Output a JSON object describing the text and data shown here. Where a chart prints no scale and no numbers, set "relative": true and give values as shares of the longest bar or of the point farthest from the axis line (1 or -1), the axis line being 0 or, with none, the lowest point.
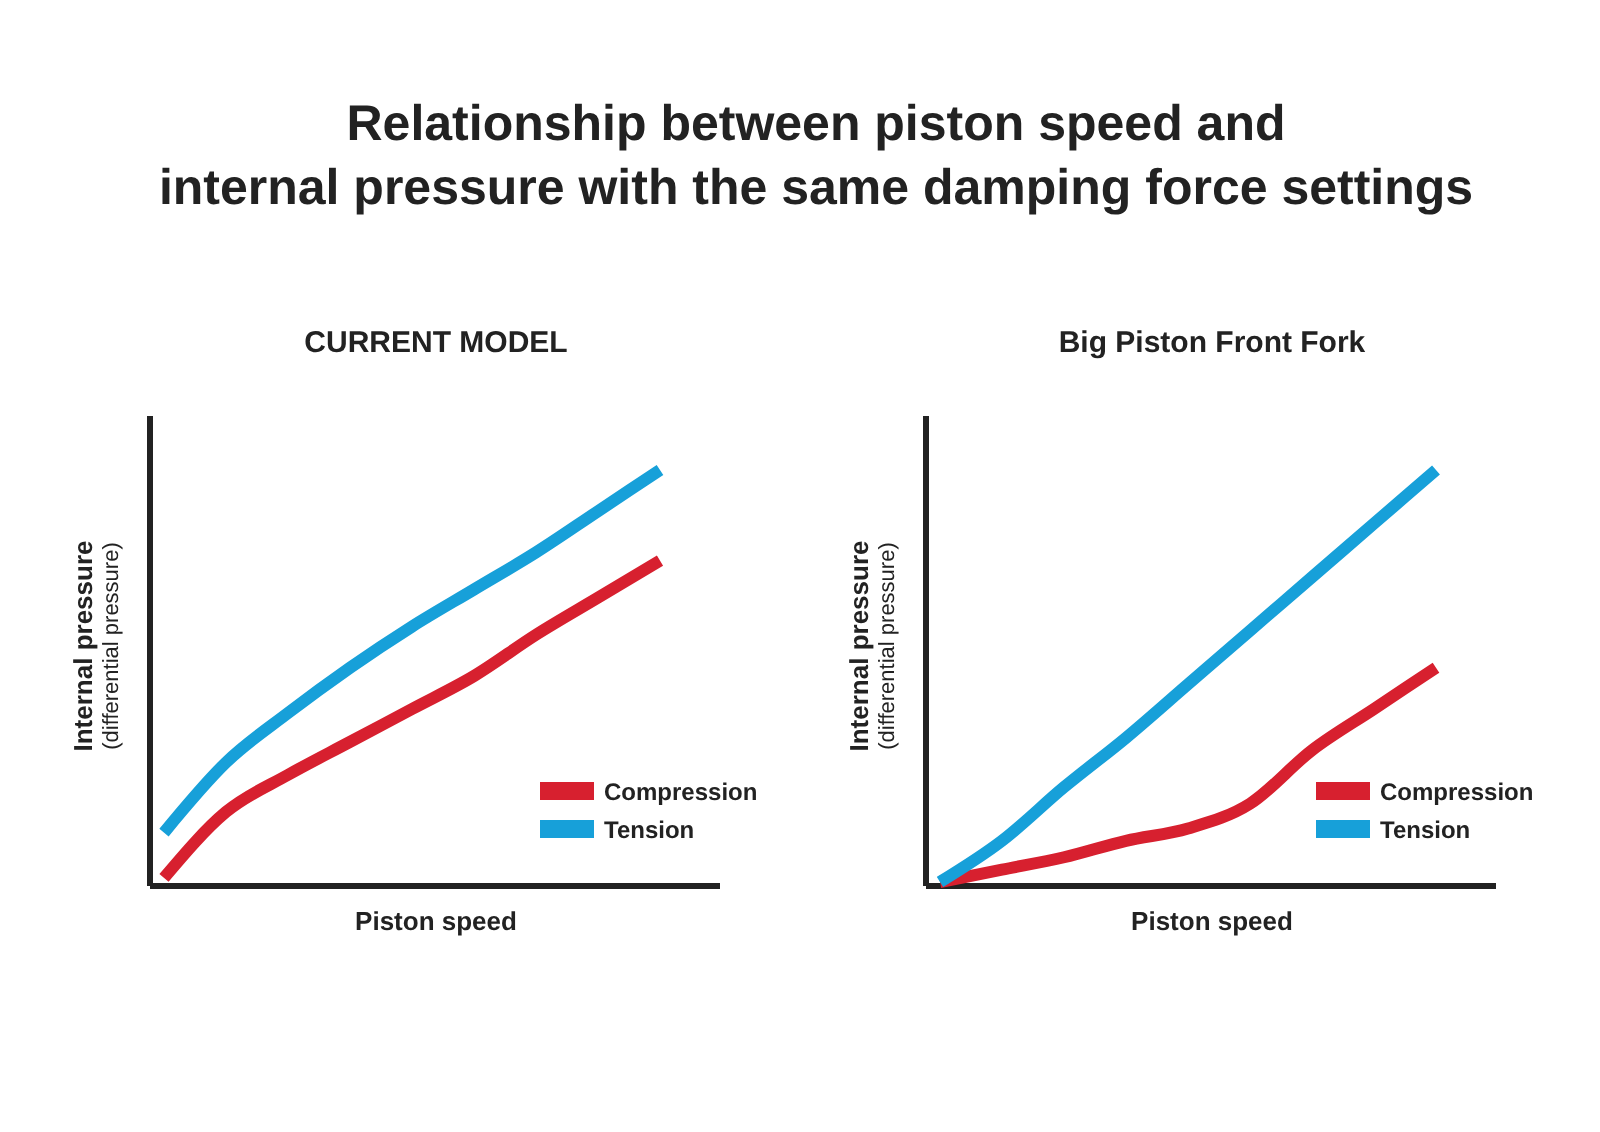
{
  "chart_data": [
    {
      "type": "other",
      "title": "Relationship between piston speed and\ninternal pressure with the same damping force settings"
    },
    {
      "type": "line",
      "title": "CURRENT MODEL",
      "xlabel": "Piston speed",
      "ylabel": "Internal pressure\n(differential pressure)",
      "relative": true,
      "legend": "right",
      "categories": [
        null,
        null,
        null,
        null,
        null,
        null,
        null,
        null,
        null
      ],
      "series": [
        {
          "name": "Compression",
          "color": "#d7202f",
          "values": [
            0.01,
            0.17,
            0.26,
            0.34,
            0.42,
            0.5,
            0.6,
            0.69,
            0.78
          ]
        },
        {
          "name": "Tension",
          "color": "#17a0d9",
          "values": [
            0.12,
            0.29,
            0.41,
            0.52,
            0.62,
            0.71,
            0.8,
            0.9,
            1
          ]
        }
      ]
    },
    {
      "type": "line",
      "title": "Big Piston Front Fork",
      "xlabel": "Piston speed",
      "ylabel": "Internal pressure\n(differential pressure)",
      "relative": true,
      "legend": "right",
      "categories": [
        null,
        null,
        null,
        null,
        null,
        null,
        null,
        null,
        null
      ],
      "series": [
        {
          "name": "Compression",
          "color": "#d7202f",
          "values": [
            0,
            0.03,
            0.06,
            0.1,
            0.13,
            0.19,
            0.32,
            0.42,
            0.52
          ]
        },
        {
          "name": "Tension",
          "color": "#17a0d9",
          "values": [
            0,
            0.1,
            0.23,
            0.35,
            0.48,
            0.61,
            0.74,
            0.87,
            1
          ]
        }
      ]
    }
  ]
}
